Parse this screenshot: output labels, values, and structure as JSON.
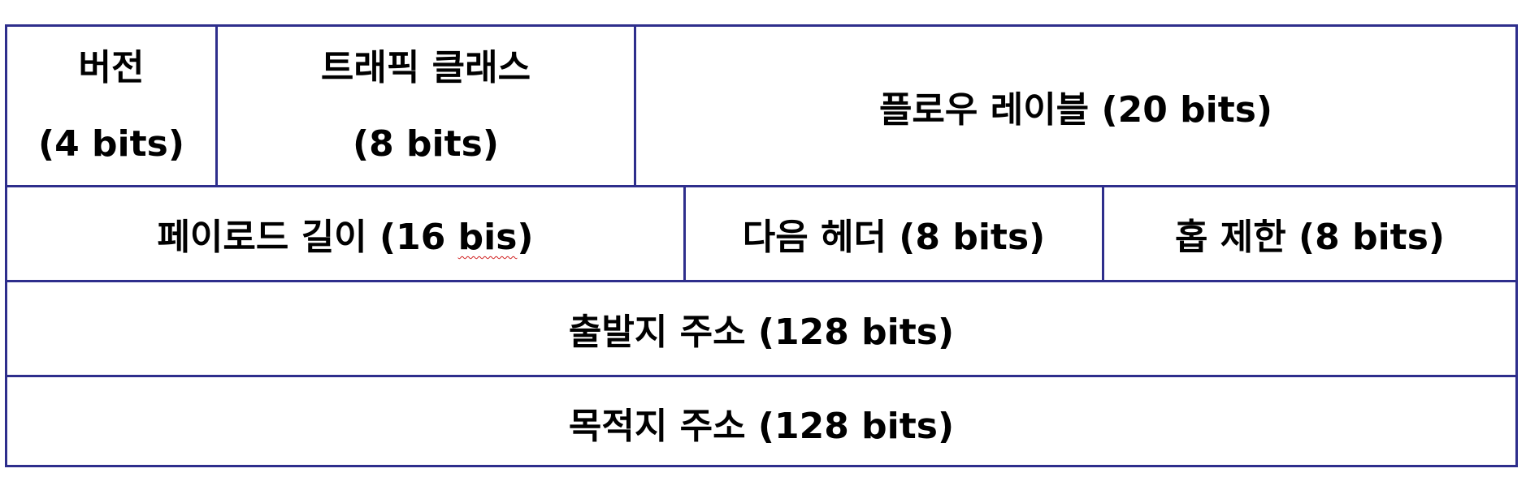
{
  "header_fields": {
    "version": {
      "name": "버전",
      "size": "(4 bits)"
    },
    "traffic_class": {
      "name": "트래픽 클래스",
      "size": "(8 bits)"
    },
    "flow_label": "플로우 레이블 (20 bits)",
    "payload_length": {
      "prefix": "페이로드 길이 (16 ",
      "misspelled": "bis",
      "suffix": ")"
    },
    "next_header": "다음 헤더 (8 bits)",
    "hop_limit": "홉 제한 (8 bits)",
    "source_address": "출발지 주소 (128 bits)",
    "destination_address": "목적지 주소 (128 bits)"
  },
  "colors": {
    "border": "#2e2e8c",
    "text": "#000000",
    "spellcheck_underline": "#d02020"
  }
}
